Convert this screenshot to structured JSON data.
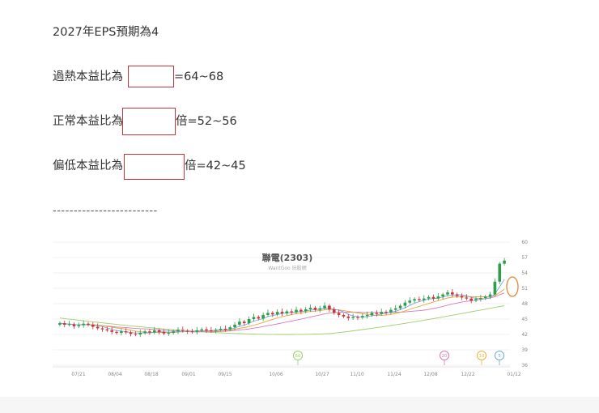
{
  "lines": {
    "eps": "2027年EPS預期為4",
    "overheat_prefix": "過熱本益比為",
    "overheat_suffix": "=64~68",
    "normal_prefix": "正常本益比為",
    "normal_suffix": "倍=52~56",
    "low_prefix": "偏低本益比為",
    "low_suffix": "倍=42~45"
  },
  "separator": "-------------------------",
  "chart_data": {
    "type": "candlestick",
    "title": "聯電(2303)",
    "subtitle": "WantGoo 玩股網",
    "x_ticks": [
      "07/21",
      "08/04",
      "08/18",
      "09/01",
      "09/15",
      "10/06",
      "10/27",
      "11/10",
      "11/24",
      "12/08",
      "12/22",
      "01/12"
    ],
    "y_ticks": [
      36,
      39,
      42,
      45,
      48,
      51,
      54,
      57,
      60
    ],
    "ylim": [
      36,
      60
    ],
    "badges": [
      "60",
      "20",
      "10",
      "5"
    ],
    "colors": {
      "up": "#2e9e48",
      "down": "#c9343a",
      "ma5": "#7aa7e0",
      "ma10": "#e9a33a",
      "ma20": "#d87bb4",
      "ma60": "#9fcf6a",
      "highlight": "#e6883a"
    },
    "closes": [
      44.2,
      43.9,
      44.0,
      43.6,
      43.8,
      44.1,
      43.9,
      43.5,
      43.2,
      43.0,
      42.8,
      42.5,
      42.3,
      42.6,
      42.4,
      42.1,
      42.0,
      42.3,
      42.6,
      42.4,
      42.8,
      42.5,
      42.2,
      42.3,
      42.6,
      42.9,
      42.7,
      42.6,
      42.5,
      42.8,
      43.0,
      42.8,
      42.7,
      42.9,
      43.1,
      43.0,
      43.4,
      43.9,
      44.5,
      44.2,
      45.0,
      45.4,
      45.1,
      45.8,
      46.2,
      45.9,
      46.4,
      46.1,
      46.5,
      46.3,
      46.8,
      46.5,
      46.9,
      47.2,
      46.8,
      47.1,
      47.6,
      46.9,
      46.2,
      45.8,
      45.5,
      45.2,
      45.4,
      45.3,
      45.6,
      45.8,
      46.2,
      46.0,
      46.4,
      46.3,
      46.8,
      47.1,
      47.6,
      48.2,
      48.6,
      48.9,
      48.7,
      49.0,
      49.3,
      49.0,
      49.4,
      49.8,
      50.2,
      49.8,
      49.5,
      49.2,
      49.0,
      48.6,
      48.9,
      49.1,
      49.4,
      49.8,
      52.3,
      55.8,
      56.4
    ]
  }
}
